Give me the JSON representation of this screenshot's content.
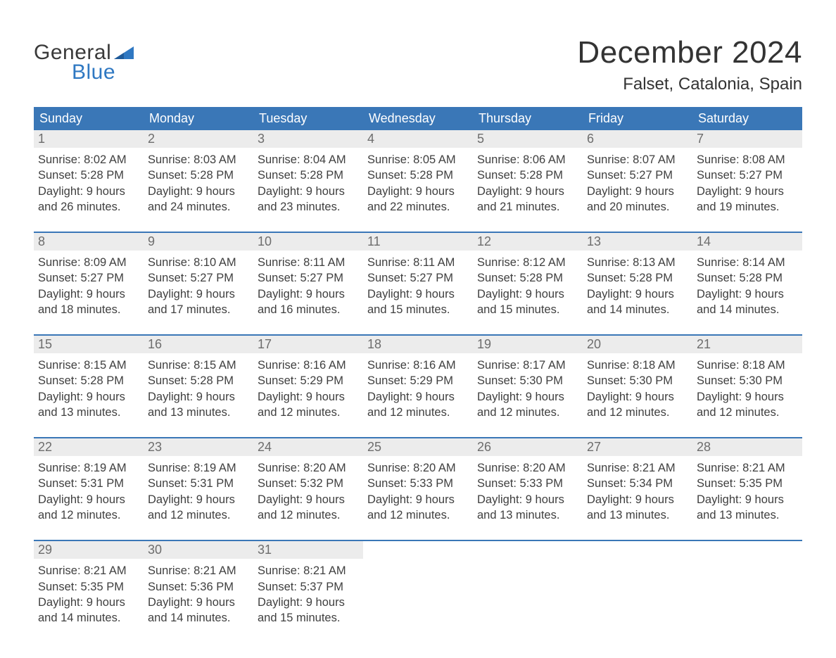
{
  "logo": {
    "word1": "General",
    "word2": "Blue"
  },
  "title": "December 2024",
  "location": "Falset, Catalonia, Spain",
  "colors": {
    "header_bg": "#3a77b7",
    "header_text": "#ffffff",
    "daynum_bg": "#ececec",
    "daynum_text": "#6d6d6d",
    "body_text": "#3f3f3f",
    "logo_gray": "#3a3a3a",
    "logo_blue": "#2f78c2",
    "page_bg": "#ffffff"
  },
  "columns": [
    "Sunday",
    "Monday",
    "Tuesday",
    "Wednesday",
    "Thursday",
    "Friday",
    "Saturday"
  ],
  "weeks": [
    [
      {
        "n": "1",
        "sr": "8:02 AM",
        "ss": "5:28 PM",
        "dl": "9 hours and 26 minutes."
      },
      {
        "n": "2",
        "sr": "8:03 AM",
        "ss": "5:28 PM",
        "dl": "9 hours and 24 minutes."
      },
      {
        "n": "3",
        "sr": "8:04 AM",
        "ss": "5:28 PM",
        "dl": "9 hours and 23 minutes."
      },
      {
        "n": "4",
        "sr": "8:05 AM",
        "ss": "5:28 PM",
        "dl": "9 hours and 22 minutes."
      },
      {
        "n": "5",
        "sr": "8:06 AM",
        "ss": "5:28 PM",
        "dl": "9 hours and 21 minutes."
      },
      {
        "n": "6",
        "sr": "8:07 AM",
        "ss": "5:27 PM",
        "dl": "9 hours and 20 minutes."
      },
      {
        "n": "7",
        "sr": "8:08 AM",
        "ss": "5:27 PM",
        "dl": "9 hours and 19 minutes."
      }
    ],
    [
      {
        "n": "8",
        "sr": "8:09 AM",
        "ss": "5:27 PM",
        "dl": "9 hours and 18 minutes."
      },
      {
        "n": "9",
        "sr": "8:10 AM",
        "ss": "5:27 PM",
        "dl": "9 hours and 17 minutes."
      },
      {
        "n": "10",
        "sr": "8:11 AM",
        "ss": "5:27 PM",
        "dl": "9 hours and 16 minutes."
      },
      {
        "n": "11",
        "sr": "8:11 AM",
        "ss": "5:27 PM",
        "dl": "9 hours and 15 minutes."
      },
      {
        "n": "12",
        "sr": "8:12 AM",
        "ss": "5:28 PM",
        "dl": "9 hours and 15 minutes."
      },
      {
        "n": "13",
        "sr": "8:13 AM",
        "ss": "5:28 PM",
        "dl": "9 hours and 14 minutes."
      },
      {
        "n": "14",
        "sr": "8:14 AM",
        "ss": "5:28 PM",
        "dl": "9 hours and 14 minutes."
      }
    ],
    [
      {
        "n": "15",
        "sr": "8:15 AM",
        "ss": "5:28 PM",
        "dl": "9 hours and 13 minutes."
      },
      {
        "n": "16",
        "sr": "8:15 AM",
        "ss": "5:28 PM",
        "dl": "9 hours and 13 minutes."
      },
      {
        "n": "17",
        "sr": "8:16 AM",
        "ss": "5:29 PM",
        "dl": "9 hours and 12 minutes."
      },
      {
        "n": "18",
        "sr": "8:16 AM",
        "ss": "5:29 PM",
        "dl": "9 hours and 12 minutes."
      },
      {
        "n": "19",
        "sr": "8:17 AM",
        "ss": "5:30 PM",
        "dl": "9 hours and 12 minutes."
      },
      {
        "n": "20",
        "sr": "8:18 AM",
        "ss": "5:30 PM",
        "dl": "9 hours and 12 minutes."
      },
      {
        "n": "21",
        "sr": "8:18 AM",
        "ss": "5:30 PM",
        "dl": "9 hours and 12 minutes."
      }
    ],
    [
      {
        "n": "22",
        "sr": "8:19 AM",
        "ss": "5:31 PM",
        "dl": "9 hours and 12 minutes."
      },
      {
        "n": "23",
        "sr": "8:19 AM",
        "ss": "5:31 PM",
        "dl": "9 hours and 12 minutes."
      },
      {
        "n": "24",
        "sr": "8:20 AM",
        "ss": "5:32 PM",
        "dl": "9 hours and 12 minutes."
      },
      {
        "n": "25",
        "sr": "8:20 AM",
        "ss": "5:33 PM",
        "dl": "9 hours and 12 minutes."
      },
      {
        "n": "26",
        "sr": "8:20 AM",
        "ss": "5:33 PM",
        "dl": "9 hours and 13 minutes."
      },
      {
        "n": "27",
        "sr": "8:21 AM",
        "ss": "5:34 PM",
        "dl": "9 hours and 13 minutes."
      },
      {
        "n": "28",
        "sr": "8:21 AM",
        "ss": "5:35 PM",
        "dl": "9 hours and 13 minutes."
      }
    ],
    [
      {
        "n": "29",
        "sr": "8:21 AM",
        "ss": "5:35 PM",
        "dl": "9 hours and 14 minutes."
      },
      {
        "n": "30",
        "sr": "8:21 AM",
        "ss": "5:36 PM",
        "dl": "9 hours and 14 minutes."
      },
      {
        "n": "31",
        "sr": "8:21 AM",
        "ss": "5:37 PM",
        "dl": "9 hours and 15 minutes."
      },
      null,
      null,
      null,
      null
    ]
  ],
  "labels": {
    "sunrise": "Sunrise:",
    "sunset": "Sunset:",
    "daylight": "Daylight:"
  }
}
